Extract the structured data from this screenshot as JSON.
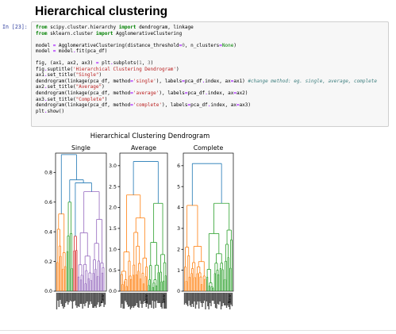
{
  "notebook": {
    "heading": "Hierarchical clustering",
    "cell": {
      "prompt": "In [23]:",
      "code_lines": [
        [
          {
            "t": "from",
            "c": "kw"
          },
          {
            "t": " scipy.cluster.hierarchy "
          },
          {
            "t": "import",
            "c": "kw"
          },
          {
            "t": " dendrogram, linkage"
          }
        ],
        [
          {
            "t": "from",
            "c": "kw"
          },
          {
            "t": " sklearn.cluster "
          },
          {
            "t": "import",
            "c": "kw"
          },
          {
            "t": " AgglomerativeClustering"
          }
        ],
        [],
        [
          {
            "t": "model "
          },
          {
            "t": "=",
            "c": "op"
          },
          {
            "t": " AgglomerativeClustering(distance_threshold"
          },
          {
            "t": "=",
            "c": "op"
          },
          {
            "t": "0",
            "c": "num"
          },
          {
            "t": ", n_clusters"
          },
          {
            "t": "=",
            "c": "op"
          },
          {
            "t": "None",
            "c": "none"
          },
          {
            "t": ")"
          }
        ],
        [
          {
            "t": "model "
          },
          {
            "t": "=",
            "c": "op"
          },
          {
            "t": " model"
          },
          {
            "t": ".",
            "c": "op"
          },
          {
            "t": "fit(pca_df)"
          }
        ],
        [],
        [
          {
            "t": "fig, (ax1, ax2, ax3) "
          },
          {
            "t": "=",
            "c": "op"
          },
          {
            "t": " plt"
          },
          {
            "t": ".",
            "c": "op"
          },
          {
            "t": "subplots("
          },
          {
            "t": "1",
            "c": "num"
          },
          {
            "t": ", "
          },
          {
            "t": "3",
            "c": "num"
          },
          {
            "t": ")"
          }
        ],
        [
          {
            "t": "fig"
          },
          {
            "t": ".",
            "c": "op"
          },
          {
            "t": "suptitle("
          },
          {
            "t": "'Hierarchical Clustering Dendrogram'",
            "c": "str"
          },
          {
            "t": ")"
          }
        ],
        [
          {
            "t": "ax1"
          },
          {
            "t": ".",
            "c": "op"
          },
          {
            "t": "set_title("
          },
          {
            "t": "\"Single\"",
            "c": "str"
          },
          {
            "t": ")"
          }
        ],
        [
          {
            "t": "dendrogram(linkage(pca_df, method"
          },
          {
            "t": "=",
            "c": "op"
          },
          {
            "t": "'single'",
            "c": "str"
          },
          {
            "t": "), labels"
          },
          {
            "t": "=",
            "c": "op"
          },
          {
            "t": "pca_df"
          },
          {
            "t": ".",
            "c": "op"
          },
          {
            "t": "index, ax"
          },
          {
            "t": "=",
            "c": "op"
          },
          {
            "t": "ax1) "
          },
          {
            "t": "#change method: eg. single, average, complete",
            "c": "cmt"
          }
        ],
        [
          {
            "t": "ax2"
          },
          {
            "t": ".",
            "c": "op"
          },
          {
            "t": "set_title("
          },
          {
            "t": "\"Average\"",
            "c": "str"
          },
          {
            "t": ")"
          }
        ],
        [
          {
            "t": "dendrogram(linkage(pca_df, method"
          },
          {
            "t": "=",
            "c": "op"
          },
          {
            "t": "'average'",
            "c": "str"
          },
          {
            "t": "), labels"
          },
          {
            "t": "=",
            "c": "op"
          },
          {
            "t": "pca_df"
          },
          {
            "t": ".",
            "c": "op"
          },
          {
            "t": "index, ax"
          },
          {
            "t": "=",
            "c": "op"
          },
          {
            "t": "ax2)"
          }
        ],
        [
          {
            "t": "ax3"
          },
          {
            "t": ".",
            "c": "op"
          },
          {
            "t": "set_title("
          },
          {
            "t": "\"Complete\"",
            "c": "str"
          },
          {
            "t": ")"
          }
        ],
        [
          {
            "t": "dendrogram(linkage(pca_df, method"
          },
          {
            "t": "=",
            "c": "op"
          },
          {
            "t": "'complete'",
            "c": "str"
          },
          {
            "t": "), labels"
          },
          {
            "t": "=",
            "c": "op"
          },
          {
            "t": "pca_df"
          },
          {
            "t": ".",
            "c": "op"
          },
          {
            "t": "index, ax"
          },
          {
            "t": "=",
            "c": "op"
          },
          {
            "t": "ax3)"
          }
        ],
        [
          {
            "t": "plt"
          },
          {
            "t": ".",
            "c": "op"
          },
          {
            "t": "show()"
          }
        ]
      ]
    }
  },
  "colors": {
    "prompt": "#303f9f",
    "above_threshold": "#1f77b4",
    "cluster_orange": "#ff7f0e",
    "cluster_green": "#2ca02c",
    "cluster_red": "#d62728",
    "cluster_purple": "#9467bd"
  },
  "chart_data": {
    "type": "dendrogram",
    "title": "Hierarchical Clustering Dendrogram",
    "subplots": [
      {
        "title": "Single",
        "yticks": [
          "0.0",
          "0.2",
          "0.4",
          "0.6",
          "0.8"
        ],
        "ylim": [
          0,
          0.93
        ],
        "leaf_count": 44,
        "root_height": 0.92,
        "root_split_heights": [
          0.75,
          0.73
        ],
        "clusters": [
          {
            "color": "orange",
            "leaves": 9,
            "height": 0.52
          },
          {
            "color": "green",
            "leaves": 6,
            "height": 0.6
          },
          {
            "color": "red",
            "leaves": 4,
            "height": 0.37
          },
          {
            "color": "purple",
            "leaves": 24,
            "height": 0.67
          }
        ],
        "leaf_labels_visible": [
          "New"
        ]
      },
      {
        "title": "Average",
        "yticks": [
          "0.0",
          "0.5",
          "1.0",
          "1.5",
          "2.0",
          "2.5",
          "3.0"
        ],
        "ylim": [
          0,
          3.3
        ],
        "leaf_count": 44,
        "root_height": 3.1,
        "clusters": [
          {
            "color": "orange",
            "leaves": 26,
            "height": 2.3
          },
          {
            "color": "green",
            "leaves": 18,
            "height": 2.1
          }
        ],
        "leaf_labels_visible": [
          "New",
          "New"
        ]
      },
      {
        "title": "Complete",
        "yticks": [
          "0",
          "1",
          "2",
          "3",
          "4",
          "5",
          "6"
        ],
        "ylim": [
          0,
          6.6
        ],
        "leaf_count": 44,
        "root_height": 6.1,
        "clusters": [
          {
            "color": "orange",
            "leaves": 20,
            "height": 4.1
          },
          {
            "color": "green",
            "leaves": 24,
            "height": 4.2
          }
        ],
        "leaf_labels_visible": [
          "New"
        ]
      }
    ]
  }
}
